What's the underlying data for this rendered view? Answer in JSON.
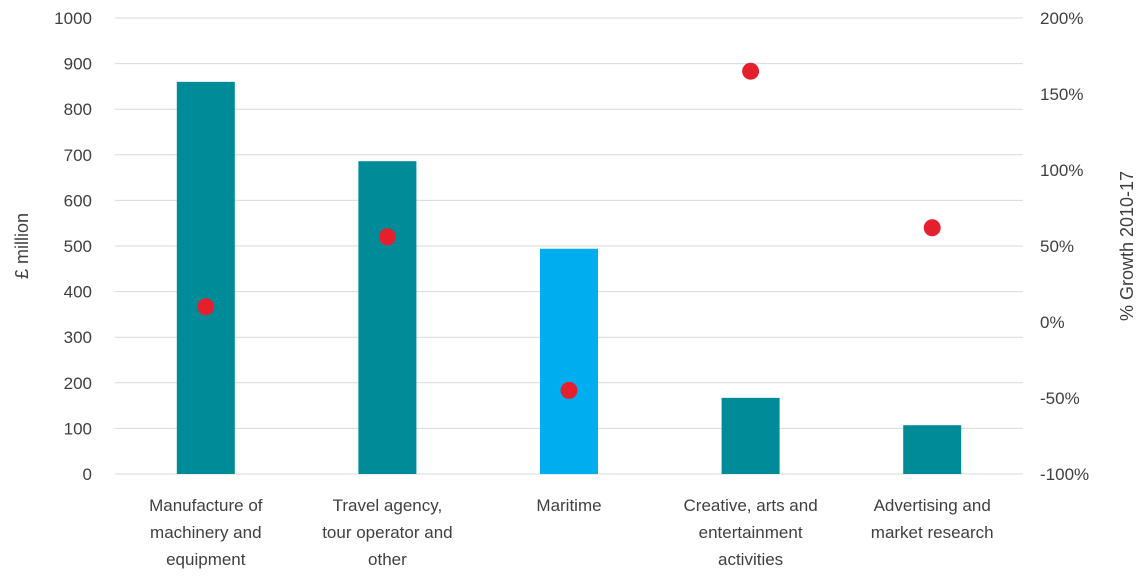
{
  "chart_data": {
    "type": "bar",
    "categories": [
      [
        "Manufacture of",
        "machinery and",
        "equipment"
      ],
      [
        "Travel agency,",
        "tour operator and",
        "other"
      ],
      [
        "Maritime"
      ],
      [
        "Creative, arts and",
        "entertainment",
        "activities"
      ],
      [
        "Advertising and",
        "market research"
      ]
    ],
    "series": [
      {
        "type": "bar",
        "axis": "left",
        "values": [
          860,
          686,
          494,
          167,
          107
        ],
        "colors": [
          "#008b99",
          "#008b99",
          "#00aeef",
          "#008b99",
          "#008b99"
        ]
      },
      {
        "type": "scatter",
        "axis": "right",
        "values": [
          10,
          56,
          -45,
          165,
          62
        ],
        "color": "#e5202e"
      }
    ],
    "ylabel": "£ million",
    "y2label": "% Growth 2010-17",
    "ylim": [
      0,
      1000
    ],
    "yticks": [
      "0",
      "100",
      "200",
      "300",
      "400",
      "500",
      "600",
      "700",
      "800",
      "900",
      "1000"
    ],
    "y2lim": [
      -100,
      200
    ],
    "y2ticks": [
      "-100%",
      "-50%",
      "0%",
      "50%",
      "100%",
      "150%",
      "200%"
    ],
    "grid": true,
    "legend": "none"
  }
}
